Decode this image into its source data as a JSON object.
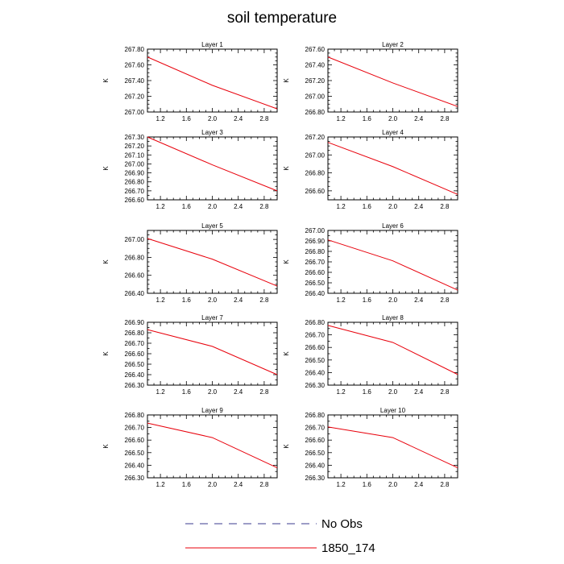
{
  "title": "soil temperature",
  "chart_data": {
    "type": "line",
    "title": "soil temperature",
    "grid": false,
    "legend_placement": "bottom-center",
    "series_styles": [
      {
        "name": "No Obs",
        "color": "#3b3b8f",
        "dash": "dashed"
      },
      {
        "name": "1850_174",
        "color": "#e8000b",
        "dash": "solid"
      }
    ],
    "panels": [
      {
        "title": "Layer 1",
        "ylabel": "K",
        "xlim": [
          1.0,
          3.0
        ],
        "ylim": [
          267.0,
          267.8
        ],
        "xticks": [
          "1.2",
          "1.6",
          "2.0",
          "2.4",
          "2.8"
        ],
        "yticks": [
          "267.00",
          "267.20",
          "267.40",
          "267.60",
          "267.80"
        ],
        "series": [
          {
            "name": "1850_174",
            "x": [
              1,
              2,
              3
            ],
            "y": [
              267.7,
              267.34,
              267.04
            ]
          }
        ]
      },
      {
        "title": "Layer 2",
        "ylabel": "K",
        "xlim": [
          1.0,
          3.0
        ],
        "ylim": [
          266.8,
          267.6
        ],
        "xticks": [
          "1.2",
          "1.6",
          "2.0",
          "2.4",
          "2.8"
        ],
        "yticks": [
          "266.80",
          "267.00",
          "267.20",
          "267.40",
          "267.60"
        ],
        "series": [
          {
            "name": "1850_174",
            "x": [
              1,
              2,
              3
            ],
            "y": [
              267.5,
              267.17,
              266.87
            ]
          }
        ]
      },
      {
        "title": "Layer 3",
        "ylabel": "K",
        "xlim": [
          1.0,
          3.0
        ],
        "ylim": [
          266.6,
          267.3
        ],
        "xticks": [
          "1.2",
          "1.6",
          "2.0",
          "2.4",
          "2.8"
        ],
        "yticks": [
          "266.60",
          "266.70",
          "266.80",
          "266.90",
          "267.00",
          "267.10",
          "267.20",
          "267.30"
        ],
        "series": [
          {
            "name": "1850_174",
            "x": [
              1,
              2,
              3
            ],
            "y": [
              267.3,
              266.99,
              266.7
            ]
          }
        ]
      },
      {
        "title": "Layer 4",
        "ylabel": "K",
        "xlim": [
          1.0,
          3.0
        ],
        "ylim": [
          266.5,
          267.2
        ],
        "xticks": [
          "1.2",
          "1.6",
          "2.0",
          "2.4",
          "2.8"
        ],
        "yticks": [
          "266.60",
          "266.80",
          "267.00",
          "267.20"
        ],
        "series": [
          {
            "name": "1850_174",
            "x": [
              1,
              2,
              3
            ],
            "y": [
              267.14,
              266.87,
              266.56
            ]
          }
        ]
      },
      {
        "title": "Layer 5",
        "ylabel": "K",
        "xlim": [
          1.0,
          3.0
        ],
        "ylim": [
          266.4,
          267.1
        ],
        "xticks": [
          "1.2",
          "1.6",
          "2.0",
          "2.4",
          "2.8"
        ],
        "yticks": [
          "266.40",
          "266.60",
          "266.80",
          "267.00"
        ],
        "series": [
          {
            "name": "1850_174",
            "x": [
              1,
              2,
              3
            ],
            "y": [
              267.01,
              266.78,
              266.48
            ]
          }
        ]
      },
      {
        "title": "Layer 6",
        "ylabel": "K",
        "xlim": [
          1.0,
          3.0
        ],
        "ylim": [
          266.4,
          267.0
        ],
        "xticks": [
          "1.2",
          "1.6",
          "2.0",
          "2.4",
          "2.8"
        ],
        "yticks": [
          "266.40",
          "266.50",
          "266.60",
          "266.70",
          "266.80",
          "266.90",
          "267.00"
        ],
        "series": [
          {
            "name": "1850_174",
            "x": [
              1,
              2,
              3
            ],
            "y": [
              266.91,
              266.71,
              266.43
            ]
          }
        ]
      },
      {
        "title": "Layer 7",
        "ylabel": "K",
        "xlim": [
          1.0,
          3.0
        ],
        "ylim": [
          266.3,
          266.9
        ],
        "xticks": [
          "1.2",
          "1.6",
          "2.0",
          "2.4",
          "2.8"
        ],
        "yticks": [
          "266.30",
          "266.40",
          "266.50",
          "266.60",
          "266.70",
          "266.80",
          "266.90"
        ],
        "series": [
          {
            "name": "1850_174",
            "x": [
              1,
              2,
              3
            ],
            "y": [
              266.83,
              266.67,
              266.4
            ]
          }
        ]
      },
      {
        "title": "Layer 8",
        "ylabel": "K",
        "xlim": [
          1.0,
          3.0
        ],
        "ylim": [
          266.3,
          266.8
        ],
        "xticks": [
          "1.2",
          "1.6",
          "2.0",
          "2.4",
          "2.8"
        ],
        "yticks": [
          "266.30",
          "266.40",
          "266.50",
          "266.60",
          "266.70",
          "266.80"
        ],
        "series": [
          {
            "name": "1850_174",
            "x": [
              1,
              2,
              3
            ],
            "y": [
              266.775,
              266.64,
              266.385
            ]
          }
        ]
      },
      {
        "title": "Layer 9",
        "ylabel": "K",
        "xlim": [
          1.0,
          3.0
        ],
        "ylim": [
          266.3,
          266.8
        ],
        "xticks": [
          "1.2",
          "1.6",
          "2.0",
          "2.4",
          "2.8"
        ],
        "yticks": [
          "266.30",
          "266.40",
          "266.50",
          "266.60",
          "266.70",
          "266.80"
        ],
        "series": [
          {
            "name": "1850_174",
            "x": [
              1,
              2,
              3
            ],
            "y": [
              266.735,
              266.62,
              266.38
            ]
          }
        ]
      },
      {
        "title": "Layer 10",
        "ylabel": "K",
        "xlim": [
          1.0,
          3.0
        ],
        "ylim": [
          266.3,
          266.8
        ],
        "xticks": [
          "1.2",
          "1.6",
          "2.0",
          "2.4",
          "2.8"
        ],
        "yticks": [
          "266.30",
          "266.40",
          "266.50",
          "266.60",
          "266.70",
          "266.80"
        ],
        "series": [
          {
            "name": "1850_174",
            "x": [
              1,
              2,
              3
            ],
            "y": [
              266.705,
              266.62,
              266.38
            ]
          }
        ]
      }
    ],
    "legend": [
      {
        "label": "No Obs",
        "color": "#3b3b8f",
        "dash": "dashed"
      },
      {
        "label": "1850_174",
        "color": "#e8000b",
        "dash": "solid"
      }
    ]
  }
}
